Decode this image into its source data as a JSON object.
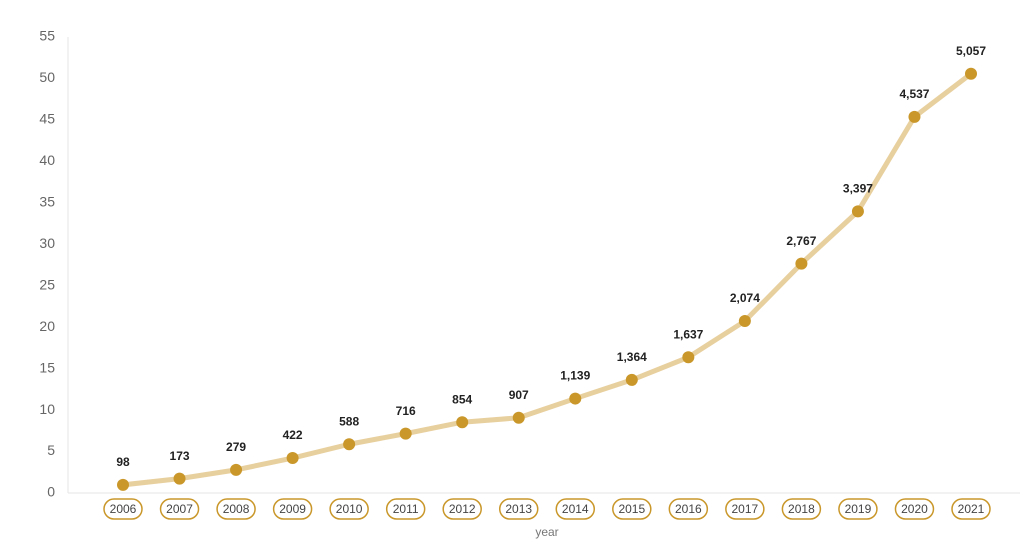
{
  "chart_data": {
    "type": "line",
    "x_label": "year",
    "categories": [
      "2006",
      "2007",
      "2008",
      "2009",
      "2010",
      "2011",
      "2012",
      "2013",
      "2014",
      "2015",
      "2016",
      "2017",
      "2018",
      "2019",
      "2020",
      "2021"
    ],
    "series": [
      {
        "color": "#c9972a",
        "line_color": "#e8cf9e",
        "values": [
          0.98,
          1.73,
          2.79,
          4.22,
          5.88,
          7.16,
          8.54,
          9.07,
          11.39,
          13.64,
          16.37,
          20.74,
          27.67,
          33.97,
          45.37,
          50.57
        ],
        "value_labels": [
          "98",
          "173",
          "279",
          "422",
          "588",
          "716",
          "854",
          "907",
          "1,139",
          "1,364",
          "1,637",
          "2,074",
          "2,767",
          "3,397",
          "4,537",
          "5,057"
        ]
      }
    ],
    "ylim": [
      0,
      55
    ],
    "yticks": [
      0,
      5,
      10,
      15,
      20,
      25,
      30,
      35,
      40,
      45,
      50,
      55
    ],
    "grid": false
  }
}
